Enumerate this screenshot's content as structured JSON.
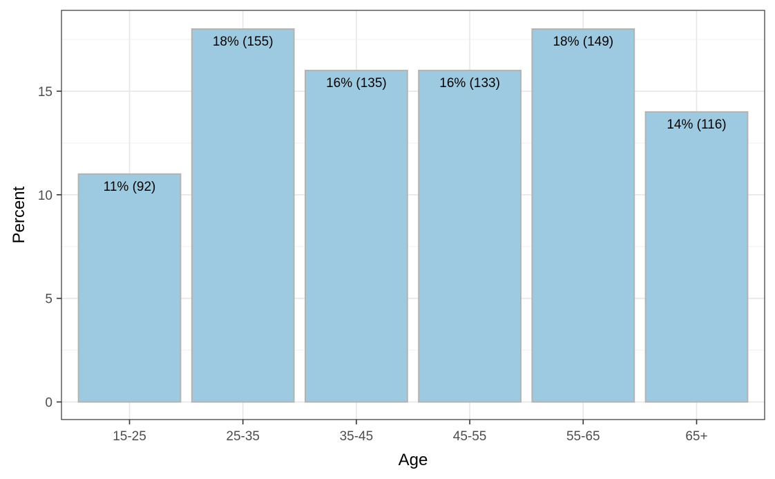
{
  "chart_data": {
    "type": "bar",
    "title": "",
    "xlabel": "Age",
    "ylabel": "Percent",
    "categories": [
      "15-25",
      "25-35",
      "35-45",
      "45-55",
      "55-65",
      "65+"
    ],
    "values": [
      11,
      18,
      16,
      16,
      18,
      14
    ],
    "counts": [
      92,
      155,
      135,
      133,
      149,
      116
    ],
    "data_labels": [
      "11% (92)",
      "18% (155)",
      "16% (135)",
      "16% (133)",
      "18% (149)",
      "14% (116)"
    ],
    "ylim": [
      -0.85,
      18.9
    ],
    "yticks": [
      0,
      5,
      10,
      15
    ],
    "ytick_labels": [
      "0",
      "5",
      "10",
      "15"
    ],
    "grid": true,
    "legend": "none",
    "colors": {
      "bar_fill": "#9ecae1",
      "bar_stroke": "#b3b3b3",
      "grid_major": "#e6e6e6",
      "grid_minor": "#f2f2f2",
      "panel_border": "#333333"
    }
  }
}
